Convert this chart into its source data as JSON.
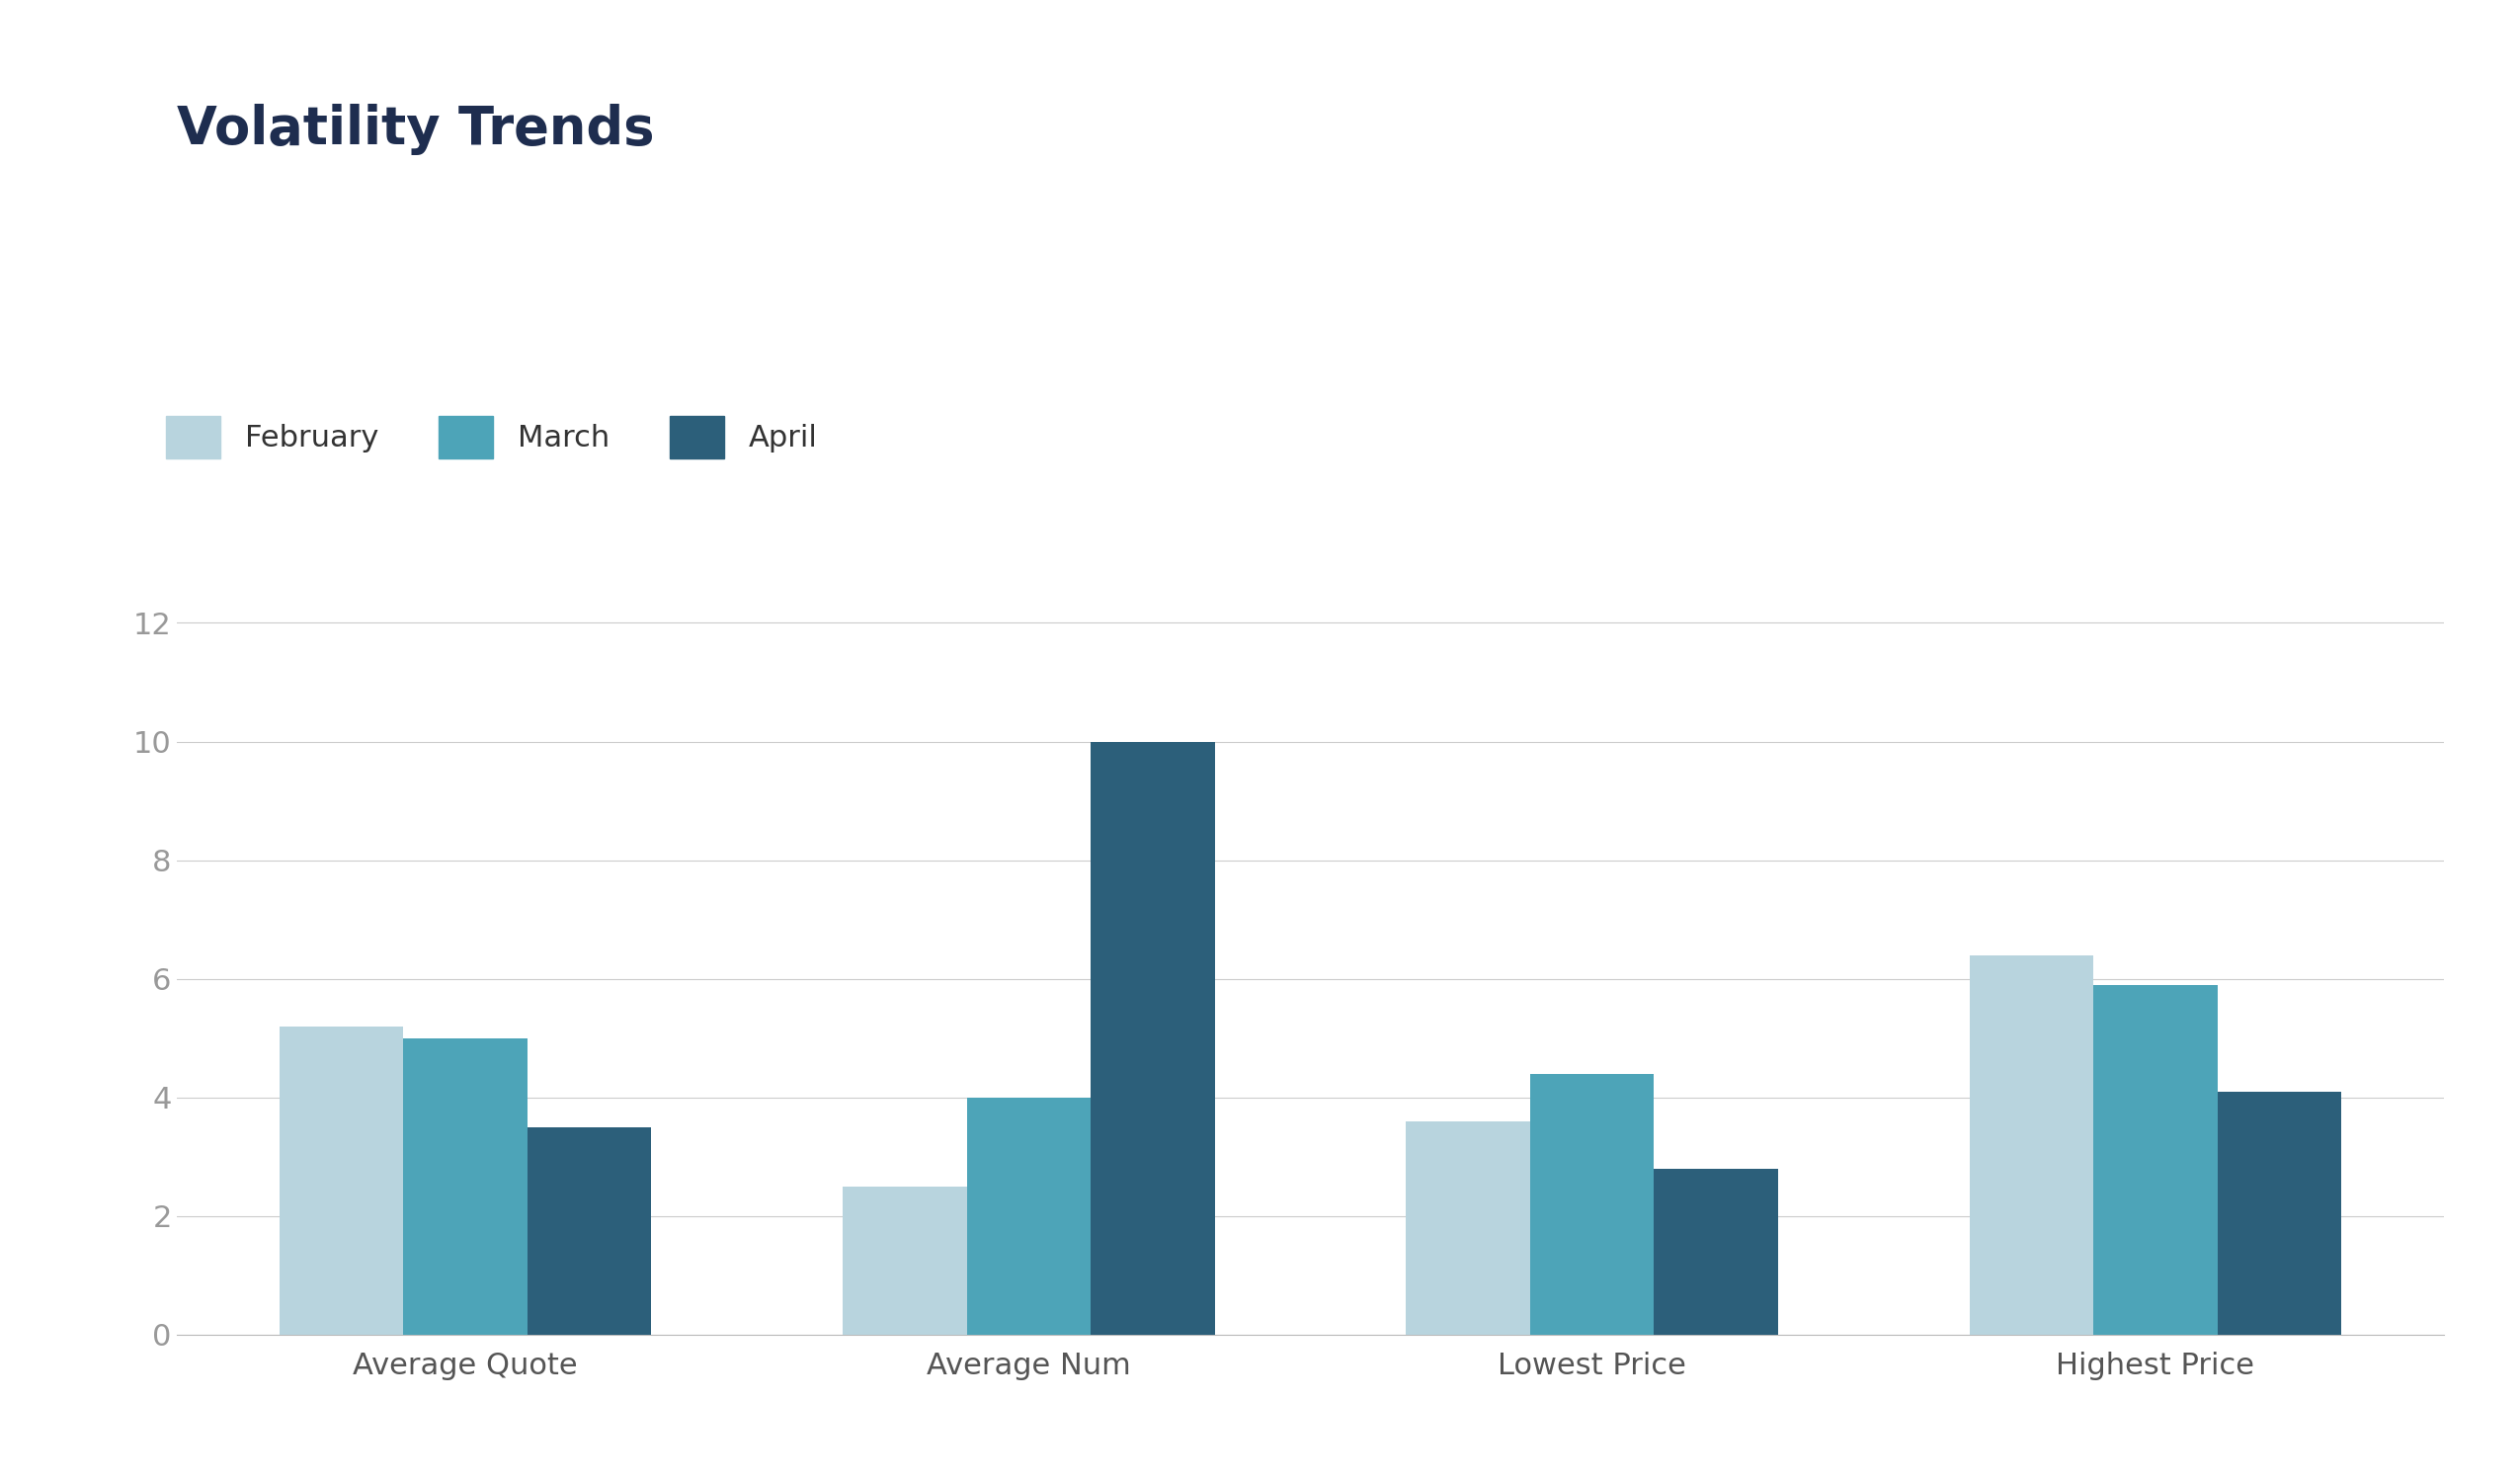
{
  "title": "Volatility Trends",
  "categories": [
    "Average Quote",
    "Average Num",
    "Lowest Price",
    "Highest Price"
  ],
  "months": [
    "February",
    "March",
    "April"
  ],
  "values": {
    "February": [
      5.2,
      2.5,
      3.6,
      6.4
    ],
    "March": [
      5.0,
      4.0,
      4.4,
      5.9
    ],
    "April": [
      3.5,
      10.0,
      2.8,
      4.1
    ]
  },
  "colors": {
    "February": "#b8d4de",
    "March": "#4da4b8",
    "April": "#2c5f7a"
  },
  "ylim": [
    0,
    13
  ],
  "yticks": [
    0,
    2,
    4,
    6,
    8,
    10,
    12
  ],
  "background_color": "#ffffff",
  "title_color": "#1e2d4f",
  "title_fontsize": 38,
  "legend_fontsize": 22,
  "tick_fontsize": 22,
  "xlabel_fontsize": 22,
  "bar_width": 0.22
}
